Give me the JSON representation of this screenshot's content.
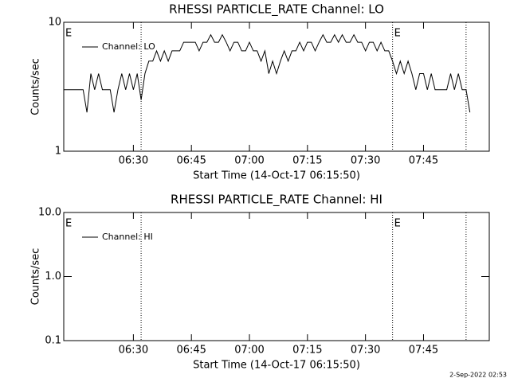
{
  "chart_data": [
    {
      "type": "line",
      "title": "RHESSI PARTICLE_RATE Channel: LO",
      "x_label": "Start Time (14-Oct-17 06:15:50)",
      "y_label": "Counts/sec",
      "log_y": true,
      "xlim": [
        "06:12",
        "08:02"
      ],
      "xticks": [
        "06:30",
        "06:45",
        "07:00",
        "07:15",
        "07:30",
        "07:45"
      ],
      "ylim": [
        1,
        10
      ],
      "yticks": [
        1,
        10
      ],
      "vlines": [
        "06:32",
        "07:37",
        "07:56"
      ],
      "markers": [
        {
          "x": "06:12",
          "label": "E"
        },
        {
          "x": "07:37",
          "label": "E"
        }
      ],
      "x": [
        "06:12",
        "06:13",
        "06:14",
        "06:15",
        "06:16",
        "06:17",
        "06:18",
        "06:19",
        "06:20",
        "06:21",
        "06:22",
        "06:23",
        "06:24",
        "06:25",
        "06:26",
        "06:27",
        "06:28",
        "06:29",
        "06:30",
        "06:31",
        "06:32",
        "06:33",
        "06:34",
        "06:35",
        "06:36",
        "06:37",
        "06:38",
        "06:39",
        "06:40",
        "06:41",
        "06:42",
        "06:43",
        "06:44",
        "06:45",
        "06:46",
        "06:47",
        "06:48",
        "06:49",
        "06:50",
        "06:51",
        "06:52",
        "06:53",
        "06:54",
        "06:55",
        "06:56",
        "06:57",
        "06:58",
        "06:59",
        "07:00",
        "07:01",
        "07:02",
        "07:03",
        "07:04",
        "07:05",
        "07:06",
        "07:07",
        "07:08",
        "07:09",
        "07:10",
        "07:11",
        "07:12",
        "07:13",
        "07:14",
        "07:15",
        "07:16",
        "07:17",
        "07:18",
        "07:19",
        "07:20",
        "07:21",
        "07:22",
        "07:23",
        "07:24",
        "07:25",
        "07:26",
        "07:27",
        "07:28",
        "07:29",
        "07:30",
        "07:31",
        "07:32",
        "07:33",
        "07:34",
        "07:35",
        "07:36",
        "07:37",
        "07:38",
        "07:39",
        "07:40",
        "07:41",
        "07:42",
        "07:43",
        "07:44",
        "07:45",
        "07:46",
        "07:47",
        "07:48",
        "07:49",
        "07:50",
        "07:51",
        "07:52",
        "07:53",
        "07:54",
        "07:55",
        "07:56",
        "07:57"
      ],
      "series": [
        {
          "name": "Channel: LO",
          "color": "#000000",
          "values": [
            3,
            3,
            3,
            3,
            3,
            3,
            2,
            4,
            3,
            4,
            3,
            3,
            3,
            2,
            3,
            4,
            3,
            4,
            3,
            4,
            2.5,
            4,
            5,
            5,
            6,
            5,
            6,
            5,
            6,
            6,
            6,
            7,
            7,
            7,
            7,
            6,
            7,
            7,
            8,
            7,
            7,
            8,
            7,
            6,
            7,
            7,
            6,
            6,
            7,
            6,
            6,
            5,
            6,
            4,
            5,
            4,
            5,
            6,
            5,
            6,
            6,
            7,
            6,
            7,
            7,
            6,
            7,
            8,
            7,
            7,
            8,
            7,
            8,
            7,
            7,
            8,
            7,
            7,
            6,
            7,
            7,
            6,
            7,
            6,
            6,
            5,
            4,
            5,
            4,
            5,
            4,
            3,
            4,
            4,
            3,
            4,
            3,
            3,
            3,
            3,
            4,
            3,
            4,
            3,
            3,
            2
          ]
        }
      ]
    },
    {
      "type": "line",
      "title": "RHESSI PARTICLE_RATE Channel: HI",
      "x_label": "Start Time (14-Oct-17 06:15:50)",
      "y_label": "Counts/sec",
      "log_y": true,
      "xlim": [
        "06:12",
        "08:02"
      ],
      "xticks": [
        "06:30",
        "06:45",
        "07:00",
        "07:15",
        "07:30",
        "07:45"
      ],
      "ylim": [
        0.1,
        10
      ],
      "yticks": [
        0.1,
        {
          "value": 1,
          "label": "1.0"
        },
        {
          "value": 10,
          "label": "10.0"
        }
      ],
      "vlines": [
        "06:32",
        "07:37",
        "07:56"
      ],
      "markers": [
        {
          "x": "06:12",
          "label": "E"
        },
        {
          "x": "07:37",
          "label": "E"
        }
      ],
      "x": [],
      "series": [
        {
          "name": "Channel: HI",
          "color": "#000000",
          "values": []
        }
      ]
    }
  ],
  "timestamp": "2-Sep-2022 02:53"
}
